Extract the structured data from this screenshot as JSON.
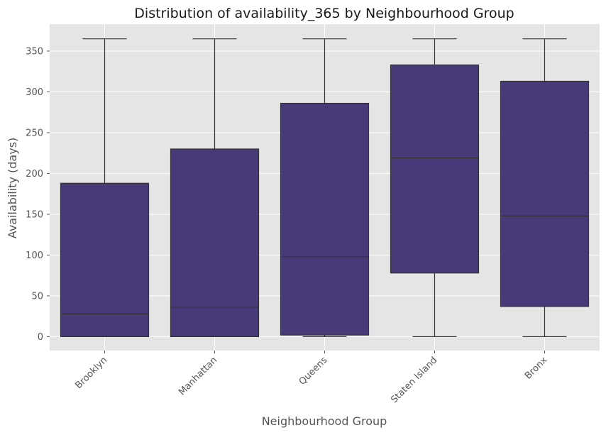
{
  "chart_data": {
    "type": "box",
    "title": "Distribution of availability_365 by Neighbourhood Group",
    "xlabel": "Neighbourhood Group",
    "ylabel": "Availability (days)",
    "ylim": [
      -17,
      383
    ],
    "yticks": [
      0,
      50,
      100,
      150,
      200,
      250,
      300,
      350
    ],
    "grid": true,
    "categories": [
      "Brooklyn",
      "Manhattan",
      "Queens",
      "Staten Island",
      "Bronx"
    ],
    "boxes": [
      {
        "category": "Brooklyn",
        "min": 0,
        "q1": 0,
        "median": 28,
        "q3": 188,
        "max": 365
      },
      {
        "category": "Manhattan",
        "min": 0,
        "q1": 0,
        "median": 36,
        "q3": 230,
        "max": 365
      },
      {
        "category": "Queens",
        "min": 0,
        "q1": 2,
        "median": 98,
        "q3": 286,
        "max": 365
      },
      {
        "category": "Staten Island",
        "min": 0,
        "q1": 78,
        "median": 219,
        "q3": 333,
        "max": 365
      },
      {
        "category": "Bronx",
        "min": 0,
        "q1": 37,
        "median": 148,
        "q3": 313,
        "max": 365
      }
    ],
    "colors": {
      "box_fill": "#483a78",
      "line": "#333333",
      "panel_bg": "#e5e5e5",
      "grid": "#ffffff"
    }
  }
}
